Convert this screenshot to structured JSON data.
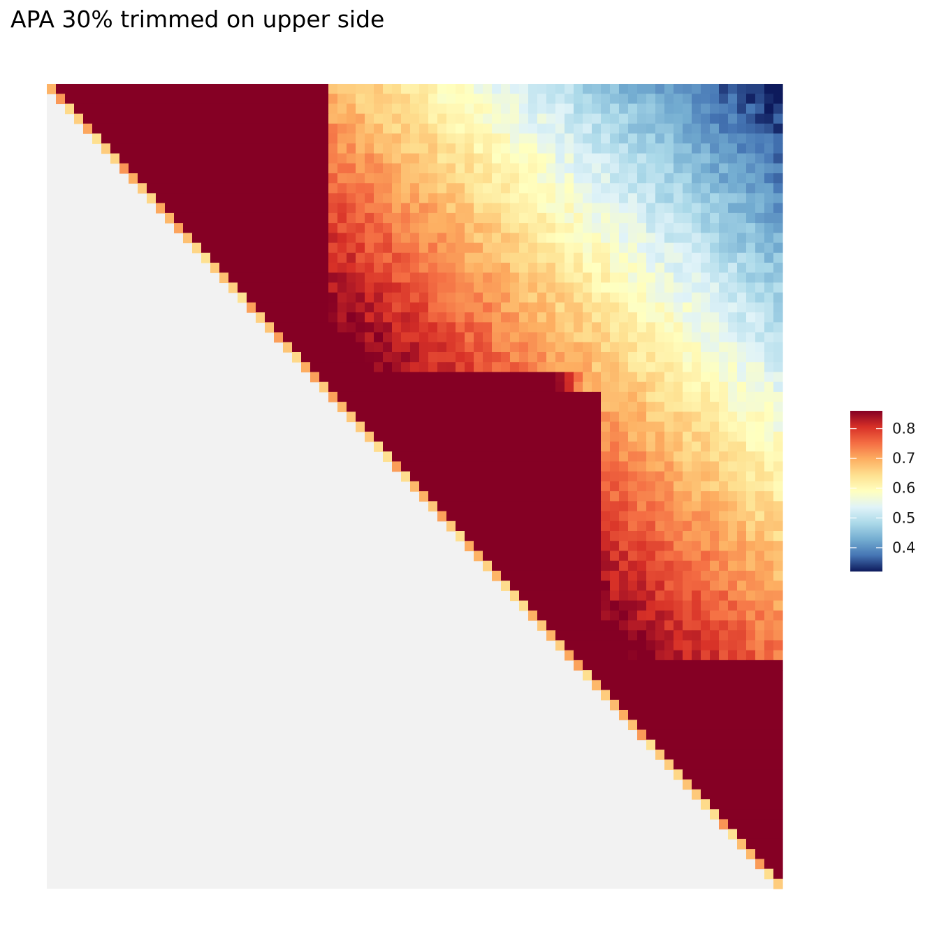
{
  "title": "APA 30% trimmed on upper side",
  "chart_data": {
    "type": "heatmap",
    "title": "APA 30% trimmed on upper side",
    "xlabel": "",
    "ylabel": "",
    "grid": false,
    "axes_visible": false,
    "n_bins": 81,
    "shape": "upper-triangular matrix (cells below the diagonal are not plotted and shown as light grey)",
    "background_fill": "#F2F2F2",
    "value_range": [
      0.32,
      0.86
    ],
    "legend": {
      "position": "right",
      "type": "continuous colorbar",
      "ticks": [
        0.8,
        0.7,
        0.6,
        0.5,
        0.4
      ],
      "palette": "RdYlBu reversed",
      "colors": [
        "#313695",
        "#4575B4",
        "#74ADD1",
        "#ABD9E9",
        "#E0F3F8",
        "#FFFFBF",
        "#FEE090",
        "#FDAE61",
        "#F46D43",
        "#D73027",
        "#A50026"
      ],
      "ends": {
        "low": "#0D1A5C",
        "high": "#850024"
      }
    },
    "structure": {
      "description": "Three contiguous high-contact domains along the diagonal (value >= 0.85) with decaying contact away from the diagonal; the top-right corner reaches the minimum.",
      "domains": [
        {
          "start_bin": 0,
          "end_bin": 30,
          "value": 0.86
        },
        {
          "start_bin": 30,
          "end_bin": 60,
          "value": 0.86
        },
        {
          "start_bin": 60,
          "end_bin": 80,
          "value": 0.86
        }
      ],
      "diagonal_cell_value": 0.68,
      "domain_boundary_value": 0.76,
      "between_domain_1_2": 0.64,
      "between_domain_2_3": 0.64,
      "between_domain_1_3_corner": 0.36,
      "minimum_corner_value": 0.32
    }
  }
}
